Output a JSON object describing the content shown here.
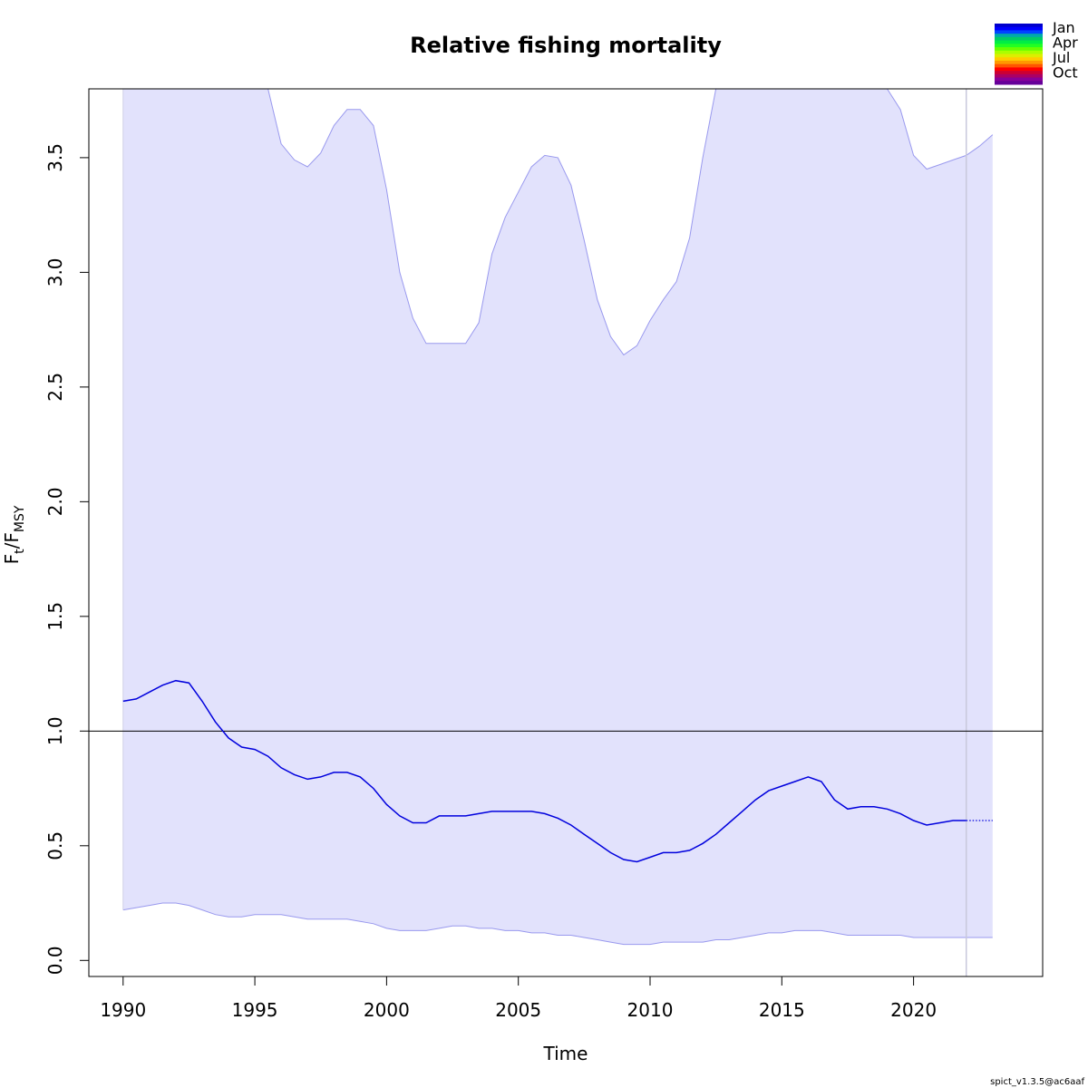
{
  "chart_data": {
    "type": "line",
    "title": "Relative fishing mortality",
    "xlabel": "Time",
    "ylabel": {
      "main": "F",
      "sub1": "t",
      "sep": "/F",
      "sub2": "MSY"
    },
    "xlim": [
      1988.7,
      2024.9
    ],
    "ylim": [
      -0.07,
      3.8
    ],
    "xticks": [
      1990,
      1995,
      2000,
      2005,
      2010,
      2015,
      2020
    ],
    "yticks": [
      0.0,
      0.5,
      1.0,
      1.5,
      2.0,
      2.5,
      3.0,
      3.5
    ],
    "xtick_labels": [
      "1990",
      "1995",
      "2000",
      "2005",
      "2010",
      "2015",
      "2020"
    ],
    "ytick_labels": [
      "0.0",
      "0.5",
      "1.0",
      "1.5",
      "2.0",
      "2.5",
      "3.0",
      "3.5"
    ],
    "reference_line": {
      "y": 1.0,
      "color": "#000000"
    },
    "vertical_line": {
      "x": 2022,
      "color": "#c8c8dc"
    },
    "band_color": "#e2e2fc",
    "band_edge_color": "#9999ee",
    "line_color": "#0000dd",
    "series": [
      {
        "role": "estimate",
        "x": [
          1990,
          1990.5,
          1991,
          1991.5,
          1992,
          1992.5,
          1993,
          1993.5,
          1994,
          1994.5,
          1995,
          1995.5,
          1996,
          1996.5,
          1997,
          1997.5,
          1998,
          1998.5,
          1999,
          1999.5,
          2000,
          2000.5,
          2001,
          2001.5,
          2002,
          2002.5,
          2003,
          2003.5,
          2004,
          2004.5,
          2005,
          2005.5,
          2006,
          2006.5,
          2007,
          2007.5,
          2008,
          2008.5,
          2009,
          2009.5,
          2010,
          2010.5,
          2011,
          2011.5,
          2012,
          2012.5,
          2013,
          2013.5,
          2014,
          2014.5,
          2015,
          2015.5,
          2016,
          2016.5,
          2017,
          2017.5,
          2018,
          2018.5,
          2019,
          2019.5,
          2020,
          2020.5,
          2021,
          2021.5,
          2022
        ],
        "y": [
          1.13,
          1.14,
          1.17,
          1.2,
          1.22,
          1.21,
          1.13,
          1.04,
          0.97,
          0.93,
          0.92,
          0.89,
          0.84,
          0.81,
          0.79,
          0.8,
          0.82,
          0.82,
          0.8,
          0.75,
          0.68,
          0.63,
          0.6,
          0.6,
          0.63,
          0.63,
          0.63,
          0.64,
          0.65,
          0.65,
          0.65,
          0.65,
          0.64,
          0.62,
          0.59,
          0.55,
          0.51,
          0.47,
          0.44,
          0.43,
          0.45,
          0.47,
          0.47,
          0.48,
          0.51,
          0.55,
          0.6,
          0.65,
          0.7,
          0.74,
          0.76,
          0.78,
          0.8,
          0.78,
          0.7,
          0.66,
          0.67,
          0.67,
          0.66,
          0.64,
          0.61,
          0.59,
          0.6,
          0.61,
          0.61
        ]
      },
      {
        "role": "projection",
        "x": [
          2022,
          2023
        ],
        "y": [
          0.61,
          0.61
        ]
      }
    ],
    "band": {
      "x": [
        1990,
        1990.5,
        1991,
        1991.5,
        1992,
        1992.5,
        1993,
        1993.5,
        1994,
        1994.5,
        1995,
        1995.5,
        1996,
        1996.5,
        1997,
        1997.5,
        1998,
        1998.5,
        1999,
        1999.5,
        2000,
        2000.5,
        2001,
        2001.5,
        2002,
        2002.5,
        2003,
        2003.5,
        2004,
        2004.5,
        2005,
        2005.5,
        2006,
        2006.5,
        2007,
        2007.5,
        2008,
        2008.5,
        2009,
        2009.5,
        2010,
        2010.5,
        2011,
        2011.5,
        2012,
        2012.5,
        2013,
        2013.5,
        2014,
        2014.5,
        2015,
        2015.5,
        2016,
        2016.5,
        2017,
        2017.5,
        2018,
        2018.5,
        2019,
        2019.5,
        2020,
        2020.5,
        2021,
        2021.5,
        2022,
        2022.5,
        2023
      ],
      "lower": [
        0.22,
        0.23,
        0.24,
        0.25,
        0.25,
        0.24,
        0.22,
        0.2,
        0.19,
        0.19,
        0.2,
        0.2,
        0.2,
        0.19,
        0.18,
        0.18,
        0.18,
        0.18,
        0.17,
        0.16,
        0.14,
        0.13,
        0.13,
        0.13,
        0.14,
        0.15,
        0.15,
        0.14,
        0.14,
        0.13,
        0.13,
        0.12,
        0.12,
        0.11,
        0.11,
        0.1,
        0.09,
        0.08,
        0.07,
        0.07,
        0.07,
        0.08,
        0.08,
        0.08,
        0.08,
        0.09,
        0.09,
        0.1,
        0.11,
        0.12,
        0.12,
        0.13,
        0.13,
        0.13,
        0.12,
        0.11,
        0.11,
        0.11,
        0.11,
        0.11,
        0.1,
        0.1,
        0.1,
        0.1,
        0.1,
        0.1,
        0.1
      ],
      "upper": [
        3.8,
        3.8,
        3.8,
        3.8,
        3.8,
        3.8,
        3.8,
        3.8,
        3.8,
        3.8,
        3.8,
        3.8,
        3.56,
        3.49,
        3.46,
        3.52,
        3.64,
        3.71,
        3.71,
        3.64,
        3.36,
        3.0,
        2.8,
        2.69,
        2.69,
        2.69,
        2.69,
        2.78,
        3.08,
        3.24,
        3.35,
        3.46,
        3.51,
        3.5,
        3.38,
        3.14,
        2.88,
        2.72,
        2.64,
        2.68,
        2.79,
        2.88,
        2.96,
        3.15,
        3.5,
        3.8,
        3.8,
        3.8,
        3.8,
        3.8,
        3.8,
        3.8,
        3.8,
        3.8,
        3.8,
        3.8,
        3.8,
        3.8,
        3.8,
        3.71,
        3.51,
        3.45,
        3.47,
        3.49,
        3.51,
        3.55,
        3.6
      ]
    },
    "legend": {
      "placement": "top-right",
      "labels": [
        "Jan",
        "Apr",
        "Jul",
        "Oct"
      ],
      "colors": [
        "#0000cc",
        "#0000ff",
        "#0044ff",
        "#00aaaa",
        "#00cc66",
        "#00ee44",
        "#22ff22",
        "#66ff00",
        "#aaff00",
        "#ddee00",
        "#ffcc00",
        "#ff9900",
        "#ff5500",
        "#ff0000",
        "#cc0033",
        "#aa0066",
        "#880099",
        "#660099"
      ]
    }
  },
  "footer": "spict_v1.3.5@ac6aaf"
}
